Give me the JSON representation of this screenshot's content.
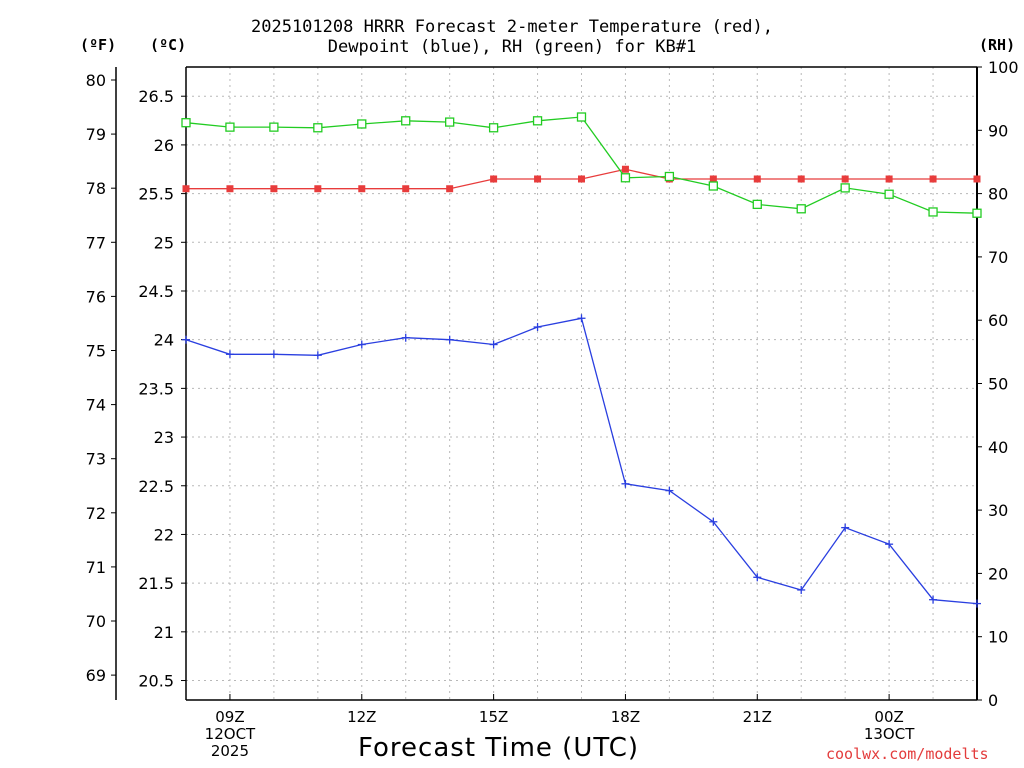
{
  "header": {
    "title_line1": "2025101208 HRRR Forecast 2-meter Temperature (red),",
    "title_line2": "Dewpoint (blue), RH (green) for KB#1"
  },
  "units": {
    "fahrenheit": "(ºF)",
    "celsius": "(ºC)",
    "rh": "(RH)"
  },
  "footer": {
    "xtitle": "Forecast Time (UTC)",
    "credit": "coolwx.com/modelts"
  },
  "colors": {
    "temp": "#e83c3c",
    "dewpoint": "#2a3fe0",
    "rh": "#22cc22",
    "grid": "#b8b8b8"
  },
  "chart_data": {
    "type": "line",
    "title": "2025101208 HRRR Forecast 2-meter Temperature (red), Dewpoint (blue), RH (green) for KB#1",
    "xlabel": "Forecast Time (UTC)",
    "x_hours": [
      8,
      9,
      10,
      11,
      12,
      13,
      14,
      15,
      16,
      17,
      18,
      19,
      20,
      21,
      22,
      23,
      24,
      25,
      26
    ],
    "xlim": [
      8,
      26
    ],
    "x_ticks": [
      {
        "hour": 9,
        "lines": [
          "09Z",
          "12OCT",
          "2025"
        ]
      },
      {
        "hour": 12,
        "lines": [
          "12Z"
        ]
      },
      {
        "hour": 15,
        "lines": [
          "15Z"
        ]
      },
      {
        "hour": 18,
        "lines": [
          "18Z"
        ]
      },
      {
        "hour": 21,
        "lines": [
          "21Z"
        ]
      },
      {
        "hour": 24,
        "lines": [
          "00Z",
          "13OCT"
        ]
      }
    ],
    "y_celsius": {
      "lim": [
        20.3,
        26.8
      ],
      "ticks": [
        20.5,
        21,
        21.5,
        22,
        22.5,
        23,
        23.5,
        24,
        24.5,
        25,
        25.5,
        26,
        26.5
      ]
    },
    "y_fahrenheit": {
      "ticks": [
        69,
        70,
        71,
        72,
        73,
        74,
        75,
        76,
        77,
        78,
        79,
        80
      ]
    },
    "y_rh": {
      "lim": [
        0,
        100
      ],
      "ticks": [
        0,
        10,
        20,
        30,
        40,
        50,
        60,
        70,
        80,
        90,
        100
      ]
    },
    "series": [
      {
        "name": "Temperature",
        "units": "C",
        "marker": "filled-square",
        "values": [
          25.55,
          25.55,
          25.55,
          25.55,
          25.55,
          25.55,
          25.55,
          25.65,
          25.65,
          25.65,
          25.75,
          25.65,
          25.65,
          25.65,
          25.65,
          25.65,
          25.65,
          25.65,
          25.65
        ]
      },
      {
        "name": "Dewpoint",
        "units": "C",
        "marker": "plus",
        "values": [
          24.0,
          23.85,
          23.85,
          23.84,
          23.95,
          24.02,
          24.0,
          23.95,
          24.13,
          24.22,
          22.52,
          22.45,
          22.13,
          21.56,
          21.43,
          22.07,
          21.9,
          21.33,
          21.29
        ]
      },
      {
        "name": "Relative Humidity",
        "units": "%",
        "marker": "open-square",
        "values": [
          91.2,
          90.5,
          90.5,
          90.4,
          91.0,
          91.5,
          91.3,
          90.4,
          91.5,
          92.1,
          82.5,
          82.7,
          81.2,
          78.3,
          77.6,
          80.9,
          79.9,
          77.1,
          76.9
        ]
      }
    ]
  }
}
